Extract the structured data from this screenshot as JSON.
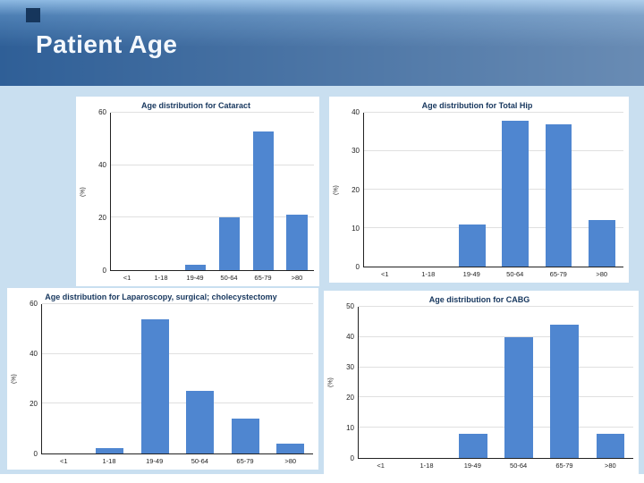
{
  "slide": {
    "title": "Patient Age"
  },
  "colors": {
    "bar": "#4f86d0",
    "header_dark": "#2f5f97",
    "header_light": "#8db9e2",
    "body_bg": "#c9dff0",
    "title_text": "#17375e"
  },
  "chart_data": [
    {
      "type": "bar",
      "title": "Age distribution for Cataract",
      "categories": [
        "<1",
        "1-18",
        "19-49",
        "50-64",
        "65-79",
        ">80"
      ],
      "values": [
        0,
        0,
        2,
        20,
        53,
        21
      ],
      "xlabel": "",
      "ylabel": "(%)",
      "ylim": [
        0,
        60
      ],
      "yticks": [
        0,
        20,
        40,
        60
      ],
      "grid": true,
      "legend": "none"
    },
    {
      "type": "bar",
      "title": "Age distribution for Total Hip",
      "categories": [
        "<1",
        "1-18",
        "19-49",
        "50-64",
        "65-79",
        ">80"
      ],
      "values": [
        0,
        0,
        11,
        38,
        37,
        12
      ],
      "xlabel": "",
      "ylabel": "(%)",
      "ylim": [
        0,
        40
      ],
      "yticks": [
        0,
        10,
        20,
        30,
        40
      ],
      "grid": true,
      "legend": "none"
    },
    {
      "type": "bar",
      "title": "Age distribution for Laparoscopy, surgical; cholecystectomy",
      "categories": [
        "<1",
        "1-18",
        "19-49",
        "50-64",
        "65-79",
        ">80"
      ],
      "values": [
        0,
        2,
        54,
        25,
        14,
        4
      ],
      "xlabel": "",
      "ylabel": "(%)",
      "ylim": [
        0,
        60
      ],
      "yticks": [
        0,
        20,
        40,
        60
      ],
      "grid": true,
      "legend": "none"
    },
    {
      "type": "bar",
      "title": "Age distribution for CABG",
      "categories": [
        "<1",
        "1-18",
        "19-49",
        "50-64",
        "65-79",
        ">80"
      ],
      "values": [
        0,
        0,
        8,
        40,
        44,
        8
      ],
      "xlabel": "",
      "ylabel": "(%)",
      "ylim": [
        0,
        50
      ],
      "yticks": [
        0,
        10,
        20,
        30,
        40,
        50
      ],
      "grid": true,
      "legend": "none"
    }
  ]
}
